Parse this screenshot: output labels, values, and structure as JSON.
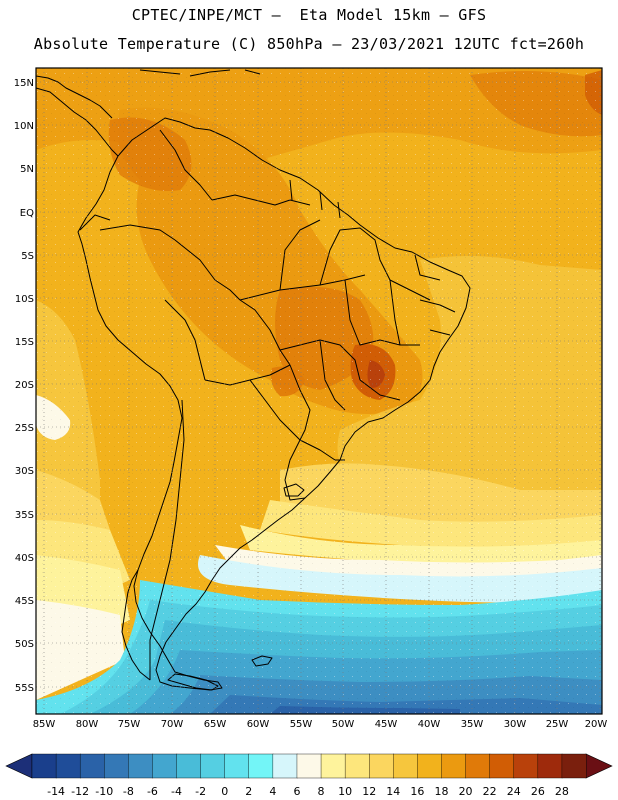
{
  "header": {
    "title_line1": "CPTEC/INPE/MCT —  Eta Model 15km — GFS",
    "title_line2": "Absolute Temperature (C) 850hPa — 23/03/2021 12UTC fct=260h"
  },
  "map": {
    "lat_labels": [
      "15N",
      "10N",
      "5N",
      "EQ",
      "5S",
      "10S",
      "15S",
      "20S",
      "25S",
      "30S",
      "35S",
      "40S",
      "45S",
      "50S",
      "55S"
    ],
    "lon_labels": [
      "85W",
      "80W",
      "75W",
      "70W",
      "65W",
      "60W",
      "55W",
      "50W",
      "45W",
      "40W",
      "35W",
      "30W",
      "25W",
      "20W"
    ]
  },
  "colorbar": {
    "labels": [
      "-14",
      "-12",
      "-10",
      "-8",
      "-6",
      "-4",
      "-2",
      "0",
      "2",
      "4",
      "6",
      "8",
      "10",
      "12",
      "14",
      "16",
      "18",
      "20",
      "22",
      "24",
      "26",
      "28"
    ],
    "colors": [
      "#1a3f8c",
      "#1f4d99",
      "#2a62a8",
      "#3478b6",
      "#3d8ec2",
      "#43a6cf",
      "#49bcd8",
      "#55cfe2",
      "#62e2ee",
      "#73f5f7",
      "#d6f6fb",
      "#fdf9e8",
      "#fef39c",
      "#fde67c",
      "#fbd65f",
      "#f6c63d",
      "#f2b21c",
      "#eb9a10",
      "#e07a09",
      "#d15d05",
      "#b9410b",
      "#9e2a0c",
      "#7a1f0d"
    ],
    "left_arrow_color": "#1c2f78",
    "right_arrow_color": "#6a0f14"
  }
}
